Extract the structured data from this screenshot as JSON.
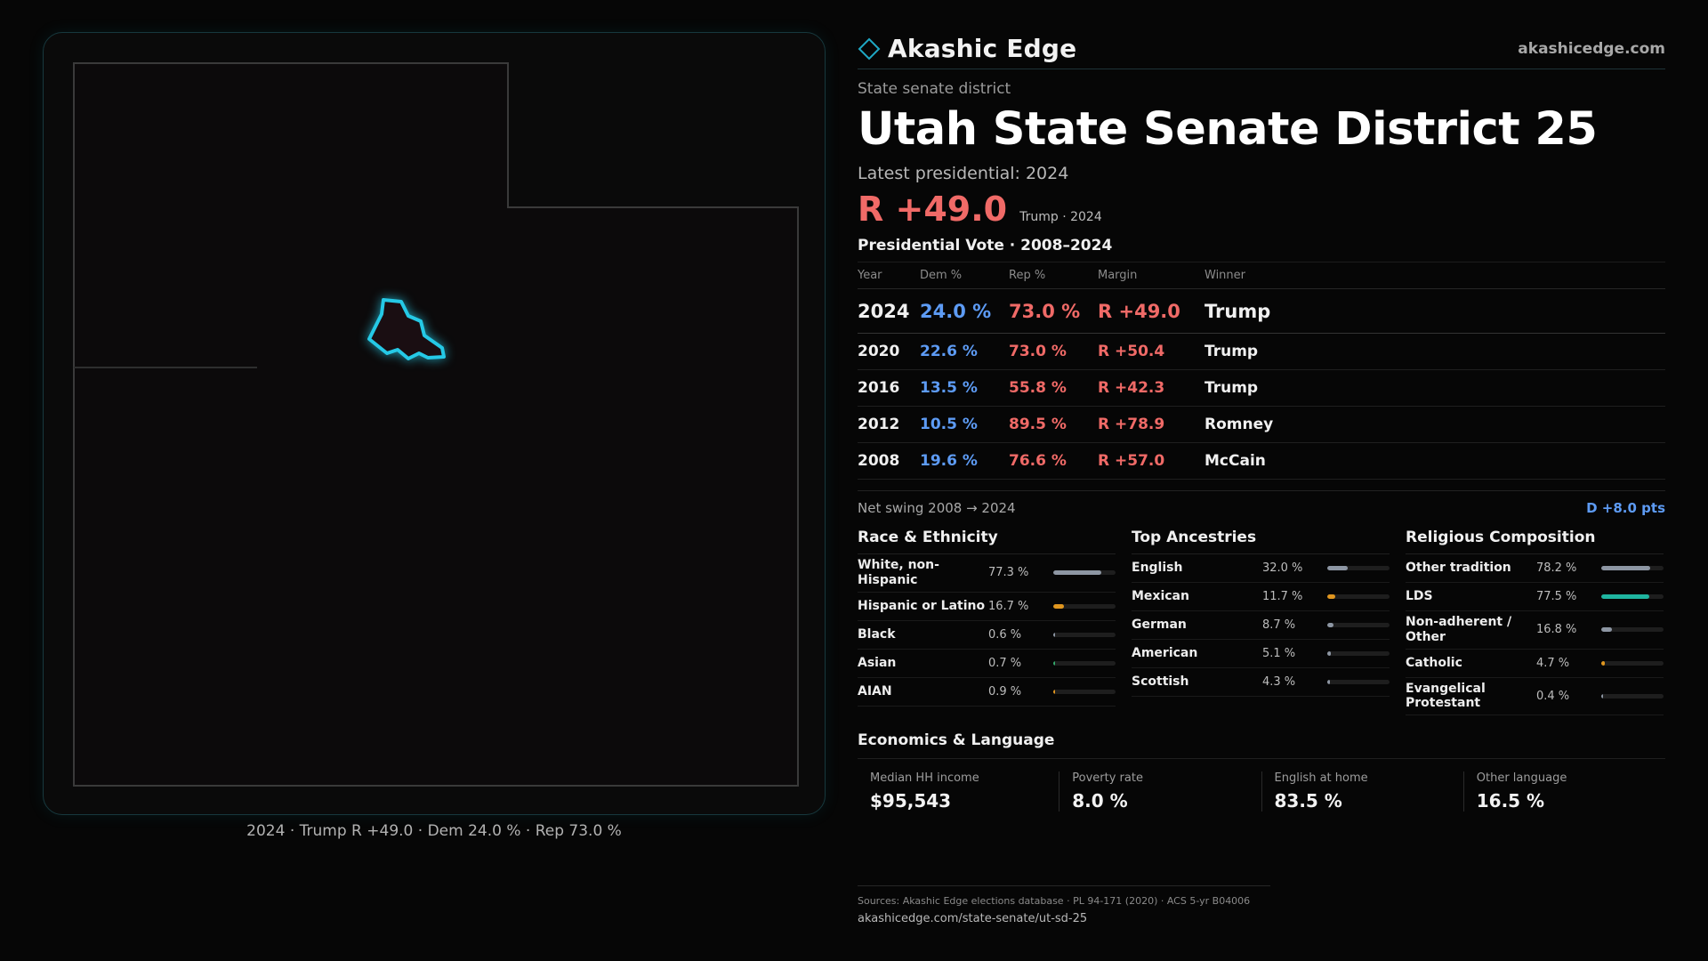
{
  "brand": {
    "name": "Akashic Edge",
    "url": "akashicedge.com"
  },
  "district": {
    "kind": "State senate district",
    "title": "Utah State Senate District 25",
    "latest_label": "Latest presidential: 2024",
    "headline_margin": "R +49.0",
    "headline_sub": "Trump · 2024"
  },
  "map": {
    "caption": "2024 · Trump R +49.0 · Dem 24.0 % · Rep 73.0 %",
    "highlight_color": "#25c9e6"
  },
  "votes": {
    "title": "Presidential Vote · 2008–2024",
    "headers": {
      "year": "Year",
      "dem": "Dem %",
      "rep": "Rep %",
      "margin": "Margin",
      "winner": "Winner"
    },
    "rows": [
      {
        "year": "2024",
        "dem": "24.0 %",
        "rep": "73.0 %",
        "margin": "R +49.0",
        "winner": "Trump"
      },
      {
        "year": "2020",
        "dem": "22.6 %",
        "rep": "73.0 %",
        "margin": "R +50.4",
        "winner": "Trump"
      },
      {
        "year": "2016",
        "dem": "13.5 %",
        "rep": "55.8 %",
        "margin": "R +42.3",
        "winner": "Trump"
      },
      {
        "year": "2012",
        "dem": "10.5 %",
        "rep": "89.5 %",
        "margin": "R +78.9",
        "winner": "Romney"
      },
      {
        "year": "2008",
        "dem": "19.6 %",
        "rep": "76.6 %",
        "margin": "R +57.0",
        "winner": "McCain"
      }
    ],
    "swing_label": "Net swing 2008 → 2024",
    "swing_value": "D +8.0 pts"
  },
  "colors": {
    "dem": "#5d9bf4",
    "rep": "#f06a67",
    "gray_bar": "#8d96a3",
    "orange_bar": "#e0961f",
    "teal_bar": "#1fb5a0",
    "green_bar": "#33a86b"
  },
  "race": {
    "title": "Race & Ethnicity",
    "items": [
      {
        "label": "White, non-Hispanic",
        "value": "77.3 %",
        "pct": 77.3,
        "color": "#8d96a3"
      },
      {
        "label": "Hispanic or Latino",
        "value": "16.7 %",
        "pct": 16.7,
        "color": "#e0961f"
      },
      {
        "label": "Black",
        "value": "0.6 %",
        "pct": 0.6,
        "color": "#8d96a3"
      },
      {
        "label": "Asian",
        "value": "0.7 %",
        "pct": 0.7,
        "color": "#33a86b"
      },
      {
        "label": "AIAN",
        "value": "0.9 %",
        "pct": 0.9,
        "color": "#e0961f"
      }
    ]
  },
  "ancestry": {
    "title": "Top Ancestries",
    "items": [
      {
        "label": "English",
        "value": "32.0 %",
        "pct": 32.0,
        "color": "#8d96a3"
      },
      {
        "label": "Mexican",
        "value": "11.7 %",
        "pct": 11.7,
        "color": "#e0961f"
      },
      {
        "label": "German",
        "value": "8.7 %",
        "pct": 8.7,
        "color": "#8d96a3"
      },
      {
        "label": "American",
        "value": "5.1 %",
        "pct": 5.1,
        "color": "#8d96a3"
      },
      {
        "label": "Scottish",
        "value": "4.3 %",
        "pct": 4.3,
        "color": "#8d96a3"
      }
    ]
  },
  "religion": {
    "title": "Religious Composition",
    "items": [
      {
        "label": "Other tradition",
        "value": "78.2 %",
        "pct": 78.2,
        "color": "#8d96a3"
      },
      {
        "label": "LDS",
        "value": "77.5 %",
        "pct": 77.5,
        "color": "#1fb5a0"
      },
      {
        "label": "Non-adherent / Other",
        "value": "16.8 %",
        "pct": 16.8,
        "color": "#8d96a3"
      },
      {
        "label": "Catholic",
        "value": "4.7 %",
        "pct": 4.7,
        "color": "#e0961f"
      },
      {
        "label": "Evangelical Protestant",
        "value": "0.4 %",
        "pct": 0.4,
        "color": "#8d96a3"
      }
    ]
  },
  "economics": {
    "title": "Economics & Language",
    "items": [
      {
        "label": "Median HH income",
        "value": "$95,543"
      },
      {
        "label": "Poverty rate",
        "value": "8.0 %"
      },
      {
        "label": "English at home",
        "value": "83.5 %"
      },
      {
        "label": "Other language",
        "value": "16.5 %"
      }
    ]
  },
  "sources": {
    "line": "Sources: Akashic Edge elections database · PL 94-171 (2020) · ACS 5-yr B04006",
    "url": "akashicedge.com/state-senate/ut-sd-25"
  }
}
